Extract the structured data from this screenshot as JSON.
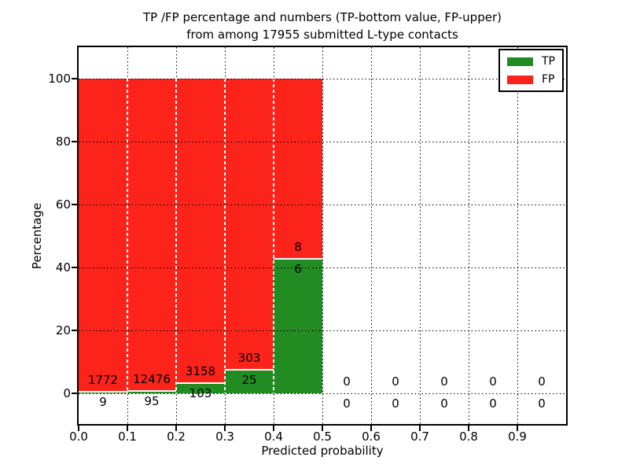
{
  "figure": {
    "title_line1": "TP /FP percentage and numbers (TP-bottom value, FP-upper)",
    "title_line2": "from among 17955 submitted L-type contacts"
  },
  "chart_data": {
    "type": "bar",
    "stacked": true,
    "title": "TP /FP percentage and numbers (TP-bottom value, FP-upper) from among 17955 submitted L-type contacts",
    "total_submitted": 17955,
    "xlabel": "Predicted probability",
    "ylabel": "Percentage",
    "xlim": [
      0.0,
      1.0
    ],
    "ylim": [
      -10,
      110
    ],
    "grid": true,
    "grid_style": "dotted",
    "legend_position": "upper right",
    "legend": [
      {
        "label": "TP",
        "color": "#228b22"
      },
      {
        "label": "FP",
        "color": "#fb231a"
      }
    ],
    "xticks": [
      {
        "value": 0.0,
        "label": "0.0"
      },
      {
        "value": 0.1,
        "label": "0.1"
      },
      {
        "value": 0.2,
        "label": "0.2"
      },
      {
        "value": 0.3,
        "label": "0.3"
      },
      {
        "value": 0.4,
        "label": "0.4"
      },
      {
        "value": 0.5,
        "label": "0.5"
      },
      {
        "value": 0.6,
        "label": "0.6"
      },
      {
        "value": 0.7,
        "label": "0.7"
      },
      {
        "value": 0.8,
        "label": "0.8"
      },
      {
        "value": 0.9,
        "label": "0.9"
      }
    ],
    "yticks": [
      {
        "value": 0,
        "label": "0"
      },
      {
        "value": 20,
        "label": "20"
      },
      {
        "value": 40,
        "label": "40"
      },
      {
        "value": 60,
        "label": "60"
      },
      {
        "value": 80,
        "label": "80"
      },
      {
        "value": 100,
        "label": "100"
      }
    ],
    "bins": [
      {
        "x0": 0.0,
        "x1": 0.1,
        "tp": 9,
        "fp": 1772,
        "tp_pct": 0.505,
        "fp_pct": 99.495
      },
      {
        "x0": 0.1,
        "x1": 0.2,
        "tp": 95,
        "fp": 12476,
        "tp_pct": 0.756,
        "fp_pct": 99.244
      },
      {
        "x0": 0.2,
        "x1": 0.3,
        "tp": 103,
        "fp": 3158,
        "tp_pct": 3.159,
        "fp_pct": 96.841
      },
      {
        "x0": 0.3,
        "x1": 0.4,
        "tp": 25,
        "fp": 303,
        "tp_pct": 7.622,
        "fp_pct": 92.378
      },
      {
        "x0": 0.4,
        "x1": 0.5,
        "tp": 6,
        "fp": 8,
        "tp_pct": 42.857,
        "fp_pct": 57.143
      },
      {
        "x0": 0.5,
        "x1": 0.6,
        "tp": 0,
        "fp": 0,
        "tp_pct": 0,
        "fp_pct": 0
      },
      {
        "x0": 0.6,
        "x1": 0.7,
        "tp": 0,
        "fp": 0,
        "tp_pct": 0,
        "fp_pct": 0
      },
      {
        "x0": 0.7,
        "x1": 0.8,
        "tp": 0,
        "fp": 0,
        "tp_pct": 0,
        "fp_pct": 0
      },
      {
        "x0": 0.8,
        "x1": 0.9,
        "tp": 0,
        "fp": 0,
        "tp_pct": 0,
        "fp_pct": 0
      },
      {
        "x0": 0.9,
        "x1": 1.0,
        "tp": 0,
        "fp": 0,
        "tp_pct": 0,
        "fp_pct": 0
      }
    ]
  }
}
